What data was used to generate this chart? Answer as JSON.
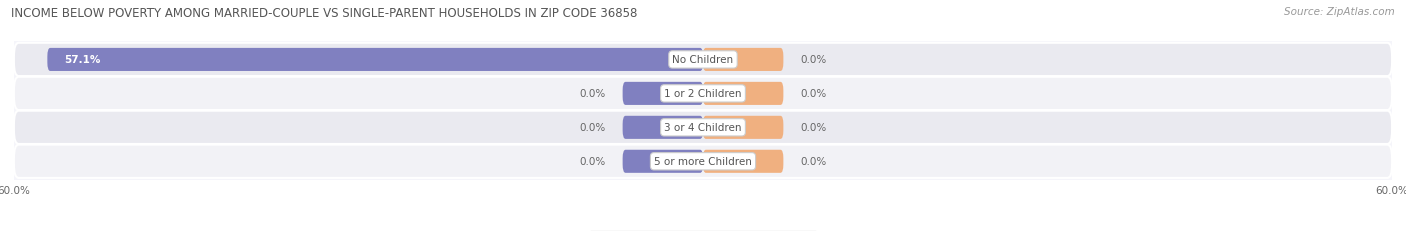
{
  "title": "INCOME BELOW POVERTY AMONG MARRIED-COUPLE VS SINGLE-PARENT HOUSEHOLDS IN ZIP CODE 36858",
  "source": "Source: ZipAtlas.com",
  "categories": [
    "No Children",
    "1 or 2 Children",
    "3 or 4 Children",
    "5 or more Children"
  ],
  "married_values": [
    57.1,
    0.0,
    0.0,
    0.0
  ],
  "single_values": [
    0.0,
    0.0,
    0.0,
    0.0
  ],
  "xlim": 60.0,
  "married_color": "#8080c0",
  "single_color": "#f0b080",
  "row_bg_even": "#eaeaf0",
  "row_bg_odd": "#f2f2f6",
  "title_fontsize": 8.5,
  "source_fontsize": 7.5,
  "label_fontsize": 7.5,
  "category_fontsize": 7.5,
  "legend_fontsize": 7.5,
  "axis_label_fontsize": 7.5,
  "title_color": "#555555",
  "label_color": "#666666",
  "category_text_color": "#555555",
  "indicator_bar_width": 7.0,
  "bar_height": 0.68
}
